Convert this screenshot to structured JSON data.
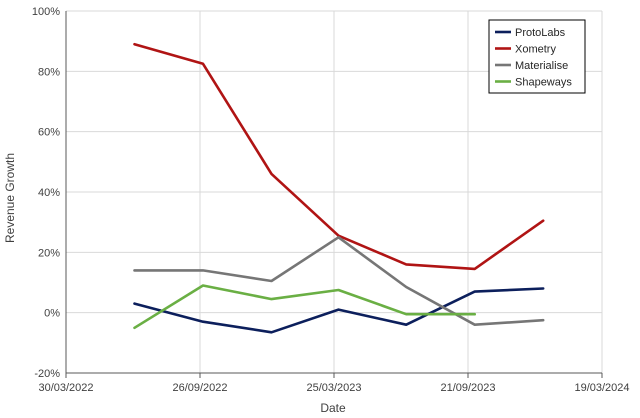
{
  "chart_data": {
    "type": "line",
    "title": "",
    "xlabel": "Date",
    "ylabel": "Revenue Growth",
    "x_axis": {
      "type": "date",
      "range": [
        "2022-03-30",
        "2024-03-19"
      ],
      "tick_dates": [
        "2022-03-30",
        "2022-09-26",
        "2023-03-25",
        "2023-09-21",
        "2024-03-19"
      ],
      "tick_labels": [
        "30/03/2022",
        "26/09/2022",
        "25/03/2023",
        "21/09/2023",
        "19/03/2024"
      ]
    },
    "y_axis": {
      "range": [
        -20,
        100
      ],
      "unit": "%",
      "ticks": [
        -20,
        0,
        20,
        40,
        60,
        80,
        100
      ],
      "tick_labels": [
        "-20%",
        "0%",
        "20%",
        "40%",
        "60%",
        "80%",
        "100%"
      ]
    },
    "grid": {
      "vertical": true,
      "horizontal": true
    },
    "legend_position": "top-right",
    "series": [
      {
        "name": "ProtoLabs",
        "color": "#0c1f5c",
        "points": [
          {
            "x": "2022-06-30",
            "y": 3
          },
          {
            "x": "2022-09-30",
            "y": -3
          },
          {
            "x": "2022-12-31",
            "y": -6.5
          },
          {
            "x": "2023-03-31",
            "y": 1
          },
          {
            "x": "2023-06-30",
            "y": -4
          },
          {
            "x": "2023-09-30",
            "y": 7
          },
          {
            "x": "2023-12-31",
            "y": 8
          }
        ]
      },
      {
        "name": "Xometry",
        "color": "#b01414",
        "points": [
          {
            "x": "2022-06-30",
            "y": 89
          },
          {
            "x": "2022-09-30",
            "y": 82.5
          },
          {
            "x": "2022-12-31",
            "y": 46
          },
          {
            "x": "2023-03-31",
            "y": 25.5
          },
          {
            "x": "2023-06-30",
            "y": 16
          },
          {
            "x": "2023-09-30",
            "y": 14.5
          },
          {
            "x": "2023-12-31",
            "y": 30.5
          }
        ]
      },
      {
        "name": "Materialise",
        "color": "#767676",
        "points": [
          {
            "x": "2022-06-30",
            "y": 14
          },
          {
            "x": "2022-09-30",
            "y": 14
          },
          {
            "x": "2022-12-31",
            "y": 10.5
          },
          {
            "x": "2023-03-31",
            "y": 25
          },
          {
            "x": "2023-06-30",
            "y": 8.5
          },
          {
            "x": "2023-09-30",
            "y": -4
          },
          {
            "x": "2023-12-31",
            "y": -2.5
          }
        ]
      },
      {
        "name": "Shapeways",
        "color": "#6aaf44",
        "points": [
          {
            "x": "2022-06-30",
            "y": -5
          },
          {
            "x": "2022-09-30",
            "y": 9
          },
          {
            "x": "2022-12-31",
            "y": 4.5
          },
          {
            "x": "2023-03-31",
            "y": 7.5
          },
          {
            "x": "2023-06-30",
            "y": -0.5
          },
          {
            "x": "2023-09-30",
            "y": -0.5
          }
        ]
      }
    ]
  }
}
